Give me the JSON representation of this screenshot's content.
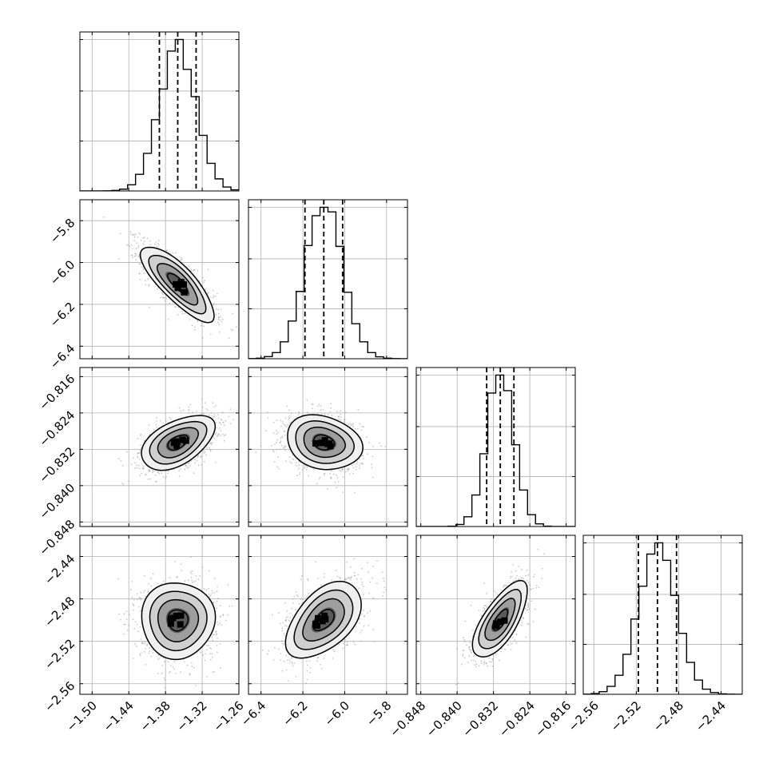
{
  "chart_data": {
    "type": "corner",
    "title": "",
    "parameters": [
      {
        "index": 0,
        "range": [
          -1.52,
          -1.26
        ],
        "ticks": [
          -1.5,
          -1.44,
          -1.38,
          -1.32,
          -1.26
        ],
        "tick_labels": [
          "−1.50",
          "−1.44",
          "−1.38",
          "−1.32",
          "−1.26"
        ],
        "quantiles": [
          -1.39,
          -1.36,
          -1.33
        ],
        "mean": -1.36,
        "sd": 0.03
      },
      {
        "index": 1,
        "range": [
          -6.46,
          -5.7
        ],
        "ticks": [
          -6.4,
          -6.2,
          -6.0,
          -5.8
        ],
        "tick_labels": [
          "−6.4",
          "−6.2",
          "−6.0",
          "−5.8"
        ],
        "quantiles": [
          -6.19,
          -6.1,
          -6.01
        ],
        "mean": -6.1,
        "sd": 0.09
      },
      {
        "index": 2,
        "range": [
          -0.849,
          -0.814
        ],
        "ticks": [
          -0.848,
          -0.84,
          -0.832,
          -0.824,
          -0.816
        ],
        "tick_labels": [
          "−0.848",
          "−0.840",
          "−0.832",
          "−0.824",
          "−0.816"
        ],
        "quantiles": [
          -0.8335,
          -0.8305,
          -0.8275
        ],
        "mean": -0.8305,
        "sd": 0.003
      },
      {
        "index": 3,
        "range": [
          -2.57,
          -2.42
        ],
        "ticks": [
          -2.56,
          -2.52,
          -2.48,
          -2.44
        ],
        "tick_labels": [
          "−2.56",
          "−2.52",
          "−2.48",
          "−2.44"
        ],
        "quantiles": [
          -2.518,
          -2.5,
          -2.482
        ],
        "mean": -2.5,
        "sd": 0.018
      }
    ],
    "correlations": [
      {
        "pair": [
          1,
          0
        ],
        "rho": -0.8
      },
      {
        "pair": [
          2,
          0
        ],
        "rho": 0.5
      },
      {
        "pair": [
          2,
          1
        ],
        "rho": -0.2
      },
      {
        "pair": [
          3,
          0
        ],
        "rho": 0.0
      },
      {
        "pair": [
          3,
          1
        ],
        "rho": 0.5
      },
      {
        "pair": [
          3,
          2
        ],
        "rho": 0.7
      }
    ],
    "histogram_bins": 20,
    "density_levels": [
      0.5,
      1.0,
      1.5,
      2.0
    ],
    "grid": true,
    "colors": {
      "line": "#000000",
      "points": "#9a9a9a",
      "grid": "#b0b0b0"
    }
  }
}
